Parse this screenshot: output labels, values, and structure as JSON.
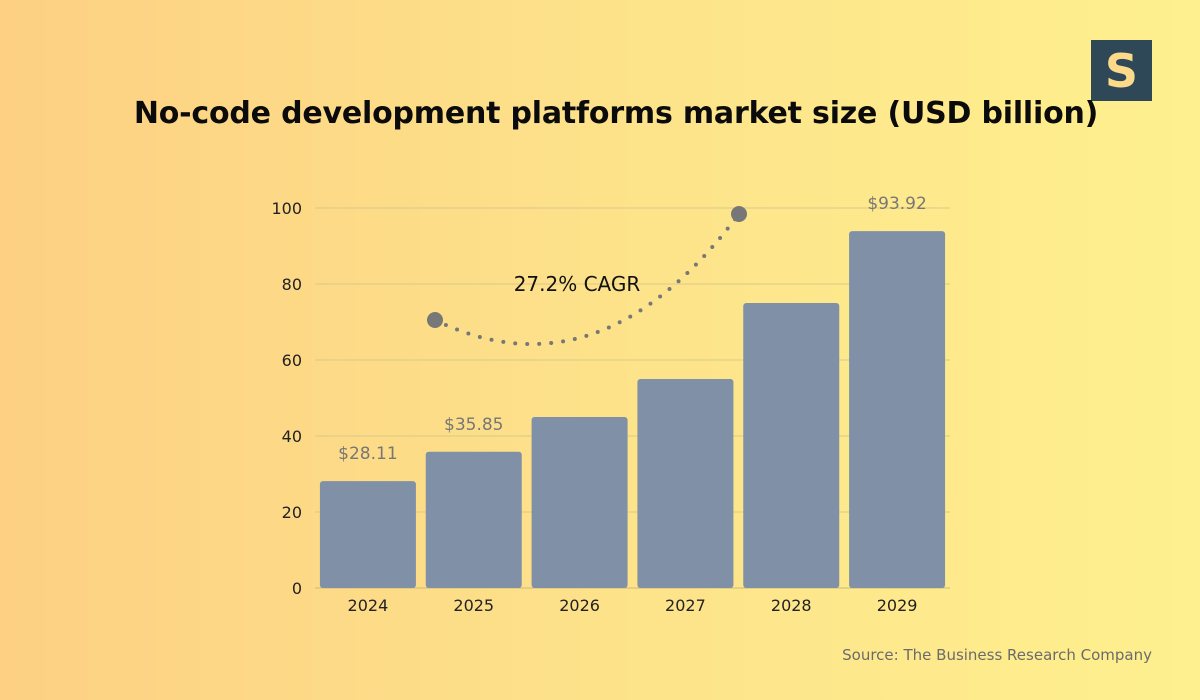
{
  "brand": {
    "logo_letter": "S"
  },
  "title": "No-code development platforms market size (USD billion)",
  "source": "Source: The Business Research Company",
  "colors": {
    "bar": "#8090a6",
    "grid": "#d9c98a",
    "label": "#777777",
    "dot": "#777777"
  },
  "chart_data": {
    "type": "bar",
    "title": "No-code development platforms market size (USD billion)",
    "categories": [
      "2024",
      "2025",
      "2026",
      "2027",
      "2028",
      "2029"
    ],
    "values": [
      28.11,
      35.85,
      45,
      55,
      75,
      93.92
    ],
    "ylim": [
      0,
      100
    ],
    "yticks": [
      0,
      20,
      40,
      60,
      80,
      100
    ],
    "grid": true,
    "data_labels": [
      {
        "index": 0,
        "text": "$28.11"
      },
      {
        "index": 1,
        "text": "$35.85"
      },
      {
        "index": 5,
        "text": "$93.92"
      }
    ],
    "annotation": {
      "text": "27.2% CAGR"
    }
  }
}
